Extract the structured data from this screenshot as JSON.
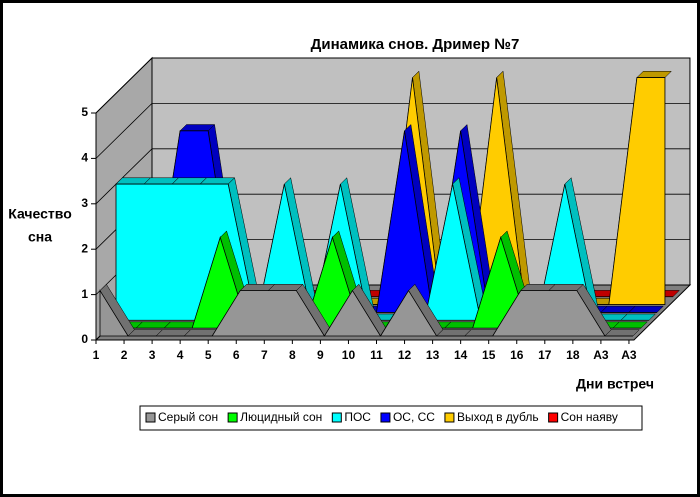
{
  "chart_data": {
    "type": "area3d",
    "title": "Динамика снов.  Дример №7",
    "ylabel": [
      "Качество",
      "сна"
    ],
    "xlabel": "Дни встреч",
    "categories": [
      "1",
      "2",
      "3",
      "4",
      "5",
      "6",
      "7",
      "8",
      "9",
      "10",
      "11",
      "12",
      "13",
      "14",
      "15",
      "16",
      "17",
      "18",
      "А3",
      "А3"
    ],
    "ylim": [
      0,
      5
    ],
    "yticks": [
      0,
      1,
      2,
      3,
      4,
      5
    ],
    "grid": true,
    "series": [
      {
        "name": "Серый сон",
        "color": "#969696",
        "values": [
          1,
          0,
          0,
          0,
          0,
          1,
          1,
          1,
          0,
          1,
          0,
          1,
          0,
          0,
          0,
          1,
          1,
          1,
          0,
          0
        ]
      },
      {
        "name": "Люцидный сон",
        "color": "#00ff00",
        "values": [
          0,
          0,
          0,
          0,
          2,
          0,
          0,
          0,
          2,
          0,
          0,
          0,
          0,
          0,
          2,
          0,
          0,
          0,
          0,
          0
        ]
      },
      {
        "name": "ПОС",
        "color": "#00ffff",
        "values": [
          3,
          3,
          3,
          3,
          3,
          0,
          3,
          0,
          3,
          0,
          0,
          0,
          3,
          0,
          0,
          0,
          3,
          0,
          0,
          0
        ]
      },
      {
        "name": "ОС, СС",
        "color": "#0000ff",
        "values": [
          0,
          0,
          4,
          4,
          0,
          0,
          0,
          0,
          0,
          0,
          4,
          0,
          4,
          0,
          0,
          0,
          0,
          0,
          0,
          0
        ]
      },
      {
        "name": "Выход в дубль",
        "color": "#ffcc00",
        "values": [
          0,
          0,
          0,
          0,
          0,
          0,
          0,
          0,
          0,
          0,
          5,
          0,
          0,
          5,
          0,
          0,
          0,
          0,
          5,
          5
        ]
      },
      {
        "name": "Сон наяву",
        "color": "#ff0000",
        "values": [
          0,
          0,
          0,
          0,
          0,
          0,
          0,
          0,
          0,
          0,
          0,
          0,
          0,
          0,
          0,
          0,
          0,
          0,
          0,
          0
        ]
      }
    ]
  }
}
